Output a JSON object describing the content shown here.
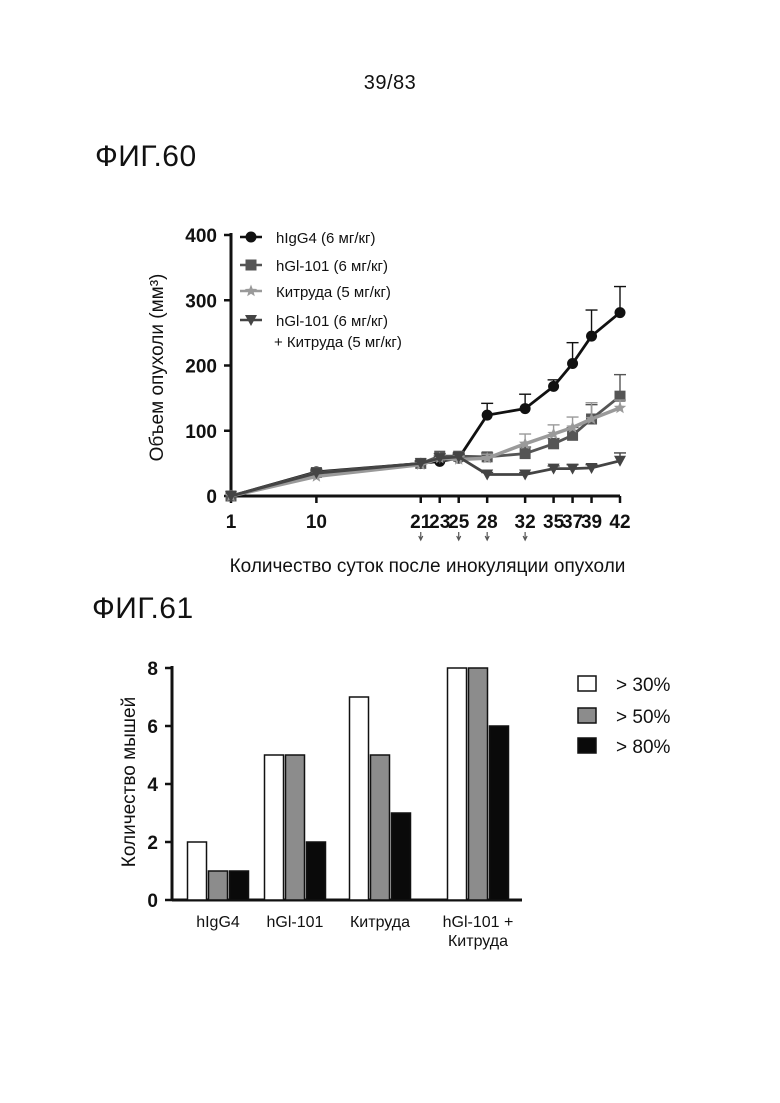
{
  "page_number": "39/83",
  "figures": [
    {
      "label": "ФИГ.60"
    },
    {
      "label": "ФИГ.61"
    }
  ],
  "chart_data": [
    {
      "type": "line",
      "xlabel": "Количество суток после инокуляции опухоли",
      "ylabel": "Объем опухоли (мм³)",
      "x": [
        1,
        10,
        21,
        23,
        25,
        28,
        32,
        35,
        37,
        39,
        42
      ],
      "xticks": [
        "1",
        "10",
        "21",
        "23",
        "25",
        "28",
        "32",
        "35",
        "37",
        "39",
        "42"
      ],
      "yticks": [
        "0",
        "100",
        "200",
        "300",
        "400"
      ],
      "ylim": [
        0,
        400
      ],
      "dose_markers_at": [
        21,
        25,
        28,
        32
      ],
      "legend_position": "top-left",
      "series": [
        {
          "name": "hIgG4 (6 мг/кг)",
          "marker": "circle",
          "color": "#111111",
          "values": [
            0,
            37,
            50,
            53,
            58,
            124,
            134,
            168,
            203,
            245,
            281
          ],
          "errors": [
            0,
            3,
            4,
            4,
            6,
            18,
            22,
            10,
            32,
            40,
            40
          ]
        },
        {
          "name": "hGl-101 (6 мг/кг)",
          "marker": "square",
          "color": "#555555",
          "values": [
            0,
            36,
            50,
            61,
            61,
            60,
            65,
            80,
            93,
            118,
            153
          ],
          "errors": [
            0,
            3,
            3,
            4,
            5,
            6,
            10,
            8,
            12,
            22,
            33
          ]
        },
        {
          "name": "Китруда (5 мг/кг)",
          "marker": "star",
          "color": "#9a9a9a",
          "values": [
            0,
            30,
            48,
            58,
            56,
            58,
            80,
            95,
            105,
            118,
            135
          ],
          "errors": [
            0,
            3,
            3,
            4,
            5,
            6,
            15,
            14,
            16,
            25,
            12
          ]
        },
        {
          "name": [
            "hGl-101 (6 мг/кг)",
            "+ Китруда (5 мг/кг)"
          ],
          "marker": "triangle-down",
          "color": "#444444",
          "values": [
            0,
            35,
            50,
            58,
            60,
            33,
            33,
            42,
            42,
            43,
            54
          ],
          "errors": [
            0,
            3,
            3,
            3,
            4,
            3,
            3,
            4,
            6,
            5,
            12
          ]
        }
      ]
    },
    {
      "type": "bar",
      "ylabel": "Количество мышей",
      "categories": [
        [
          "hIgG4"
        ],
        [
          "hGl-101"
        ],
        [
          "Китруда"
        ],
        [
          "hGl-101 +",
          "Китруда"
        ]
      ],
      "yticks": [
        "0",
        "2",
        "4",
        "6",
        "8"
      ],
      "ylim": [
        0,
        8
      ],
      "legend_position": "right",
      "series": [
        {
          "name": "> 30%",
          "fill": "#ffffff",
          "values": [
            2,
            5,
            7,
            8
          ]
        },
        {
          "name": "> 50%",
          "fill": "#8c8c8c",
          "values": [
            1,
            5,
            5,
            8
          ]
        },
        {
          "name": "> 80%",
          "fill": "#0a0a0a",
          "values": [
            1,
            2,
            3,
            6
          ]
        }
      ]
    }
  ]
}
